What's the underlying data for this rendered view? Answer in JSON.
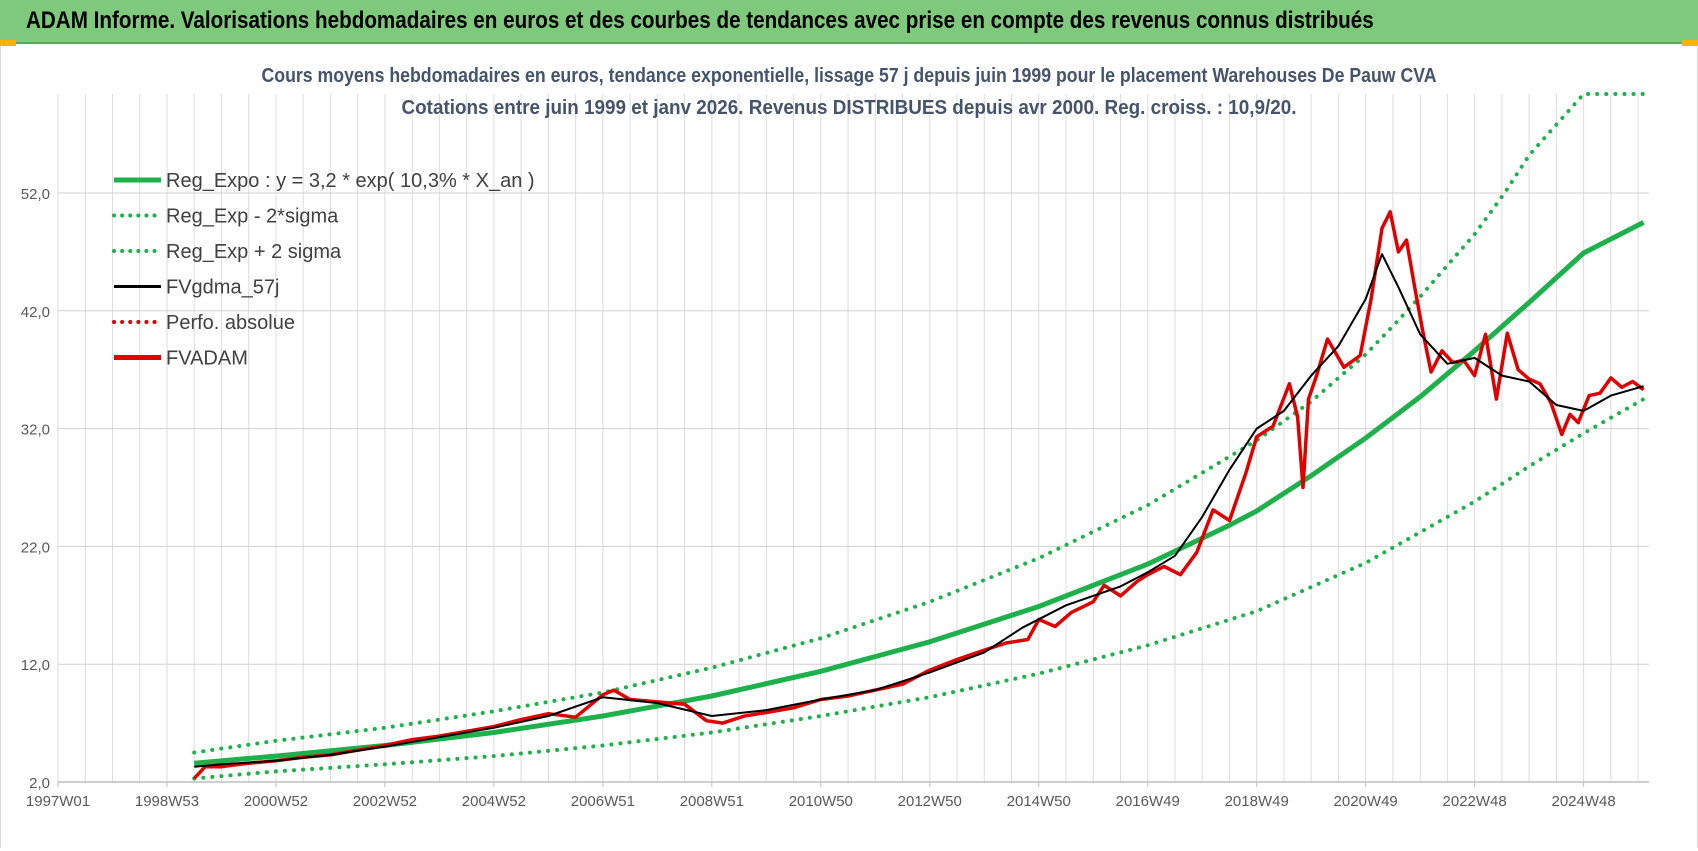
{
  "banner": {
    "title": "ADAM Informe. Valorisations hebdomadaires en euros et des courbes de tendances avec prise en compte des revenus connus distribués",
    "background": "#7ec97b"
  },
  "chart_data": {
    "type": "line",
    "title_line1": "Cours moyens hebdomadaires en euros, tendance exponentielle, lissage 57 j depuis juin 1999 pour le placement Warehouses De Pauw CVA",
    "title_line2": "Cotations entre juin 1999 et janv 2026. Revenus DISTRIBUES depuis avr 2000. Reg. croiss. : 10,9/20.",
    "xlim": [
      1997.0,
      2026.2
    ],
    "ylim": [
      2.0,
      60.4
    ],
    "y_ticks": [
      2.0,
      12.0,
      22.0,
      32.0,
      42.0,
      52.0
    ],
    "y_tick_labels": [
      "2,0",
      "12,0",
      "22,0",
      "32,0",
      "42,0",
      "52,0"
    ],
    "x_ticks": [
      1997.0,
      1999.0,
      2001.0,
      2003.0,
      2005.0,
      2007.0,
      2009.0,
      2011.0,
      2013.0,
      2015.0,
      2017.0,
      2019.0,
      2021.0,
      2023.0,
      2025.0
    ],
    "x_tick_labels": [
      "1997W01",
      "1998W53",
      "2000W52",
      "2002W52",
      "2004W52",
      "2006W51",
      "2008W51",
      "2010W50",
      "2012W50",
      "2014W50",
      "2016W49",
      "2018W49",
      "2020W49",
      "2022W48",
      "2024W48"
    ],
    "vertical_grid_step_years": 0.5,
    "legend": {
      "position": "top-left",
      "entries": [
        {
          "label": "Reg_Expo : y = 3,2 * exp( 10,3% *  X_an )",
          "color": "#1db04b",
          "style": "solid-thick"
        },
        {
          "label": "Reg_Exp - 2*sigma",
          "color": "#1db04b",
          "style": "dotted"
        },
        {
          "label": "Reg_Exp + 2 sigma",
          "color": "#1db04b",
          "style": "dotted"
        },
        {
          "label": "FVgdma_57j",
          "color": "#000000",
          "style": "solid"
        },
        {
          "label": "Perfo. absolue",
          "color": "#e00000",
          "style": "dotted"
        },
        {
          "label": "FVADAM",
          "color": "#e00000",
          "style": "solid-thick"
        }
      ]
    },
    "series": [
      {
        "name": "Reg_Expo",
        "color": "#1db04b",
        "x": [
          1999.5,
          2001.0,
          2003.0,
          2005.0,
          2007.0,
          2009.0,
          2011.0,
          2013.0,
          2015.0,
          2017.0,
          2018.5,
          2019.0,
          2020.0,
          2021.0,
          2022.0,
          2023.0,
          2024.0,
          2025.0,
          2026.1
        ],
        "y": [
          3.6,
          4.2,
          5.1,
          6.2,
          7.6,
          9.3,
          11.4,
          13.9,
          16.9,
          20.5,
          23.8,
          25.0,
          28.0,
          31.2,
          34.7,
          38.6,
          42.7,
          46.9,
          49.5
        ]
      },
      {
        "name": "Reg_Exp - 2*sigma",
        "color": "#1db04b",
        "x": [
          1999.5,
          2001.0,
          2003.0,
          2005.0,
          2007.0,
          2009.0,
          2011.0,
          2013.0,
          2015.0,
          2017.0,
          2019.0,
          2021.0,
          2023.0,
          2024.0,
          2025.0,
          2026.1
        ],
        "y": [
          2.3,
          2.9,
          3.5,
          4.2,
          5.1,
          6.2,
          7.6,
          9.2,
          11.2,
          13.6,
          16.5,
          20.6,
          25.8,
          28.8,
          31.6,
          34.5
        ]
      },
      {
        "name": "Reg_Exp + 2 sigma",
        "color": "#1db04b",
        "x": [
          1999.5,
          2001.0,
          2003.0,
          2005.0,
          2007.0,
          2009.0,
          2011.0,
          2013.0,
          2015.0,
          2017.0,
          2019.0,
          2020.0,
          2021.0,
          2021.5,
          2022.0,
          2023.0,
          2023.55,
          2024.0,
          2025.0,
          2026.1
        ],
        "y": [
          4.5,
          5.5,
          6.6,
          8.0,
          9.6,
          11.7,
          14.2,
          17.3,
          21.0,
          25.5,
          31.0,
          34.3,
          38.3,
          40.7,
          43.2,
          48.5,
          52.0,
          55.2,
          60.4,
          60.4
        ]
      },
      {
        "name": "FVgdma_57j",
        "color": "#000000",
        "x": [
          1999.5,
          2000.0,
          2001.0,
          2002.0,
          2003.0,
          2004.0,
          2005.0,
          2006.0,
          2007.0,
          2008.0,
          2009.0,
          2010.0,
          2011.0,
          2012.0,
          2013.0,
          2014.0,
          2014.7,
          2015.5,
          2016.5,
          2017.0,
          2017.5,
          2018.0,
          2018.5,
          2019.0,
          2019.5,
          2020.0,
          2020.5,
          2021.0,
          2021.3,
          2021.6,
          2022.0,
          2022.5,
          2023.0,
          2023.5,
          2024.0,
          2024.5,
          2025.0,
          2025.5,
          2026.1
        ],
        "y": [
          3.3,
          3.5,
          3.8,
          4.3,
          5.0,
          5.8,
          6.6,
          7.6,
          9.2,
          8.7,
          7.6,
          8.1,
          9.0,
          9.8,
          11.3,
          13.0,
          15.1,
          17.0,
          18.6,
          19.8,
          21.2,
          24.5,
          28.5,
          32.0,
          33.5,
          36.5,
          39.0,
          43.0,
          46.8,
          44.0,
          40.0,
          37.5,
          38.0,
          36.5,
          36.0,
          34.0,
          33.5,
          34.8,
          35.6
        ]
      },
      {
        "name": "FVADAM",
        "color": "#e00000",
        "x": [
          1999.5,
          1999.7,
          2000.0,
          2000.5,
          2001.0,
          2001.5,
          2002.0,
          2002.5,
          2003.0,
          2003.5,
          2004.0,
          2004.5,
          2005.0,
          2005.5,
          2006.0,
          2006.5,
          2007.0,
          2007.2,
          2007.5,
          2008.0,
          2008.5,
          2008.9,
          2009.2,
          2009.6,
          2010.0,
          2010.5,
          2011.0,
          2011.5,
          2012.0,
          2012.5,
          2013.0,
          2013.5,
          2014.0,
          2014.4,
          2014.8,
          2015.0,
          2015.3,
          2015.6,
          2016.0,
          2016.2,
          2016.5,
          2016.8,
          2017.0,
          2017.3,
          2017.6,
          2017.9,
          2018.2,
          2018.5,
          2018.8,
          2019.0,
          2019.3,
          2019.6,
          2019.75,
          2019.85,
          2019.95,
          2020.1,
          2020.3,
          2020.6,
          2020.9,
          2021.1,
          2021.3,
          2021.45,
          2021.6,
          2021.75,
          2021.9,
          2022.05,
          2022.2,
          2022.4,
          2022.6,
          2022.8,
          2023.0,
          2023.2,
          2023.4,
          2023.6,
          2023.8,
          2024.0,
          2024.2,
          2024.4,
          2024.6,
          2024.75,
          2024.9,
          2025.1,
          2025.3,
          2025.5,
          2025.7,
          2025.9,
          2026.1
        ],
        "y": [
          2.3,
          3.3,
          3.3,
          3.6,
          3.8,
          4.1,
          4.3,
          4.7,
          5.1,
          5.6,
          5.9,
          6.3,
          6.7,
          7.3,
          7.8,
          7.5,
          9.4,
          9.8,
          9.0,
          8.8,
          8.6,
          7.2,
          7.0,
          7.6,
          7.9,
          8.3,
          9.0,
          9.3,
          9.8,
          10.3,
          11.5,
          12.4,
          13.2,
          13.8,
          14.1,
          15.8,
          15.2,
          16.4,
          17.3,
          18.7,
          17.8,
          19.0,
          19.6,
          20.3,
          19.6,
          21.5,
          25.1,
          24.2,
          28.2,
          31.3,
          32.2,
          35.8,
          33.0,
          27.0,
          34.5,
          36.5,
          39.6,
          37.2,
          38.2,
          43.0,
          49.0,
          50.4,
          47.0,
          48.0,
          44.0,
          40.2,
          36.8,
          38.6,
          37.6,
          37.8,
          36.5,
          40.0,
          34.5,
          40.1,
          37.0,
          36.2,
          35.8,
          34.2,
          31.5,
          33.2,
          32.5,
          34.8,
          35.0,
          36.3,
          35.5,
          36.0,
          35.3
        ]
      }
    ]
  }
}
